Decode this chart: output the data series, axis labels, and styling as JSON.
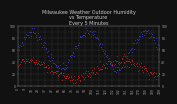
{
  "title": "Milwaukee Weather Outdoor Humidity\nvs Temperature\nEvery 5 Minutes",
  "title_fontsize": 3.5,
  "bg_color": "#111111",
  "plot_bg_color": "#111111",
  "blue_color": "#4444ff",
  "red_color": "#ff2222",
  "ylim": [
    0,
    100
  ],
  "grid_color": "#555555",
  "tick_fontsize": 2.2,
  "tick_color": "#aaaaaa",
  "title_color": "#cccccc",
  "n_points": 200,
  "seed": 7
}
